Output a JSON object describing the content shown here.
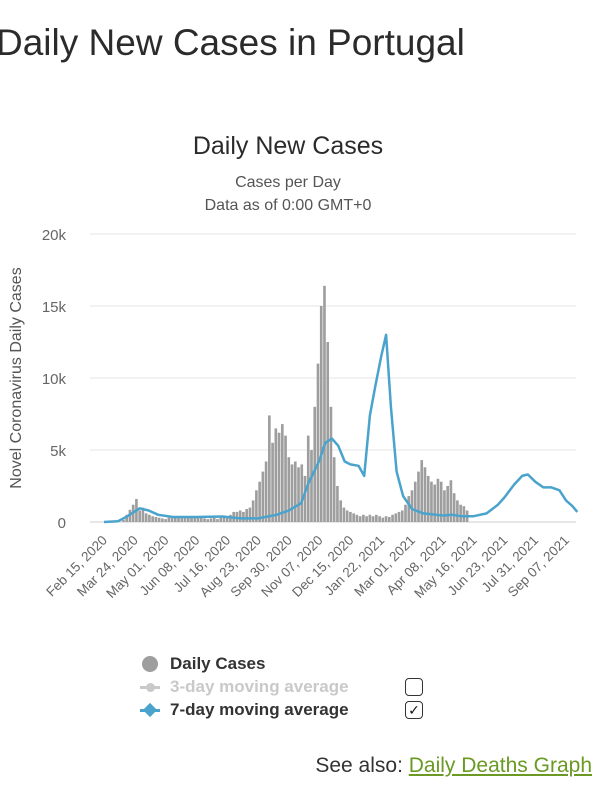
{
  "page": {
    "title": "Daily New Cases in Portugal",
    "see_also_prefix": "See also: ",
    "see_also_link": "Daily Deaths Graph"
  },
  "colors": {
    "bars": "#9e9e9e",
    "ma7": "#4aa3cc",
    "ma3_disabled": "#c9c9c9",
    "grid": "#e6e6e6"
  },
  "legend": [
    {
      "label": "Daily Cases",
      "checked": null
    },
    {
      "label": "3-day moving average",
      "checked": false
    },
    {
      "label": "7-day moving average",
      "checked": true
    }
  ],
  "chart_data": {
    "type": "bar",
    "title": "Daily New Cases",
    "subtitle": "Cases per Day",
    "subtitle2": "Data as of 0:00 GMT+0",
    "xlabel": "",
    "ylabel": "Novel Coronavirus Daily Cases",
    "ylim": [
      0,
      20000
    ],
    "yticks": [
      0,
      5000,
      10000,
      15000,
      20000
    ],
    "ytick_labels": [
      "0",
      "5k",
      "10k",
      "15k",
      "20k"
    ],
    "xticks": [
      "Feb 15, 2020",
      "Mar 24, 2020",
      "May 01, 2020",
      "Jun 08, 2020",
      "Jul 16, 2020",
      "Aug 23, 2020",
      "Sep 30, 2020",
      "Nov 07, 2020",
      "Dec 15, 2020",
      "Jan 22, 2021",
      "Mar 01, 2021",
      "Apr 08, 2021",
      "May 16, 2021",
      "Jun 23, 2021",
      "Jul 31, 2021",
      "Sep 07, 2021"
    ],
    "series": [
      {
        "name": "Daily Cases",
        "kind": "bar",
        "x_start": "Feb 15, 2020",
        "interval_days": 4,
        "values": [
          0,
          0,
          0,
          0,
          0,
          10,
          150,
          500,
          850,
          1200,
          1600,
          800,
          1000,
          600,
          500,
          400,
          350,
          300,
          250,
          200,
          300,
          300,
          350,
          300,
          350,
          300,
          350,
          350,
          400,
          350,
          300,
          250,
          200,
          250,
          300,
          200,
          300,
          300,
          400,
          500,
          700,
          700,
          800,
          700,
          900,
          1000,
          1500,
          2200,
          2800,
          3500,
          4200,
          7400,
          5500,
          6500,
          6200,
          6800,
          6000,
          4500,
          4000,
          4200,
          3800,
          4000,
          3200,
          6000,
          5000,
          8000,
          11000,
          15000,
          16400,
          12500,
          8000,
          4500,
          2500,
          1500,
          1000,
          800,
          700,
          600,
          500,
          400,
          500,
          400,
          500,
          400,
          500,
          400,
          300,
          400,
          350,
          500,
          600,
          700,
          800,
          1200,
          1800,
          2200,
          2800,
          3500,
          4300,
          3800,
          3200,
          2800,
          2600,
          3000,
          2800,
          2200,
          2500,
          2900,
          2000,
          1500,
          1200,
          1100,
          800
        ]
      },
      {
        "name": "7-day moving average",
        "kind": "line",
        "points": [
          [
            "Feb 15, 2020",
            0
          ],
          [
            "Mar 03, 2020",
            50
          ],
          [
            "Mar 15, 2020",
            400
          ],
          [
            "Mar 30, 2020",
            950
          ],
          [
            "Apr 10, 2020",
            800
          ],
          [
            "Apr 22, 2020",
            500
          ],
          [
            "May 10, 2020",
            350
          ],
          [
            "Jun 08, 2020",
            350
          ],
          [
            "Jul 10, 2020",
            380
          ],
          [
            "Aug 01, 2020",
            250
          ],
          [
            "Aug 23, 2020",
            250
          ],
          [
            "Sep 15, 2020",
            500
          ],
          [
            "Sep 30, 2020",
            800
          ],
          [
            "Oct 15, 2020",
            1300
          ],
          [
            "Oct 25, 2020",
            2800
          ],
          [
            "Nov 07, 2020",
            4300
          ],
          [
            "Nov 14, 2020",
            5500
          ],
          [
            "Nov 22, 2020",
            5800
          ],
          [
            "Nov 30, 2020",
            5300
          ],
          [
            "Dec 08, 2020",
            4200
          ],
          [
            "Dec 15, 2020",
            4000
          ],
          [
            "Dec 25, 2020",
            3900
          ],
          [
            "Jan 01, 2021",
            3200
          ],
          [
            "Jan 08, 2021",
            7400
          ],
          [
            "Jan 15, 2021",
            9500
          ],
          [
            "Jan 22, 2021",
            11500
          ],
          [
            "Jan 28, 2021",
            13000
          ],
          [
            "Feb 03, 2021",
            8000
          ],
          [
            "Feb 10, 2021",
            3500
          ],
          [
            "Feb 18, 2021",
            1800
          ],
          [
            "Mar 01, 2021",
            900
          ],
          [
            "Mar 15, 2021",
            600
          ],
          [
            "Apr 08, 2021",
            450
          ],
          [
            "Apr 20, 2021",
            500
          ],
          [
            "May 01, 2021",
            400
          ],
          [
            "May 16, 2021",
            400
          ],
          [
            "Jun 01, 2021",
            600
          ],
          [
            "Jun 15, 2021",
            1200
          ],
          [
            "Jun 23, 2021",
            1700
          ],
          [
            "Jul 05, 2021",
            2600
          ],
          [
            "Jul 15, 2021",
            3200
          ],
          [
            "Jul 22, 2021",
            3300
          ],
          [
            "Jul 31, 2021",
            2800
          ],
          [
            "Aug 10, 2021",
            2400
          ],
          [
            "Aug 20, 2021",
            2400
          ],
          [
            "Aug 30, 2021",
            2200
          ],
          [
            "Sep 07, 2021",
            1500
          ],
          [
            "Sep 15, 2021",
            1100
          ],
          [
            "Sep 21, 2021",
            700
          ]
        ]
      }
    ]
  }
}
